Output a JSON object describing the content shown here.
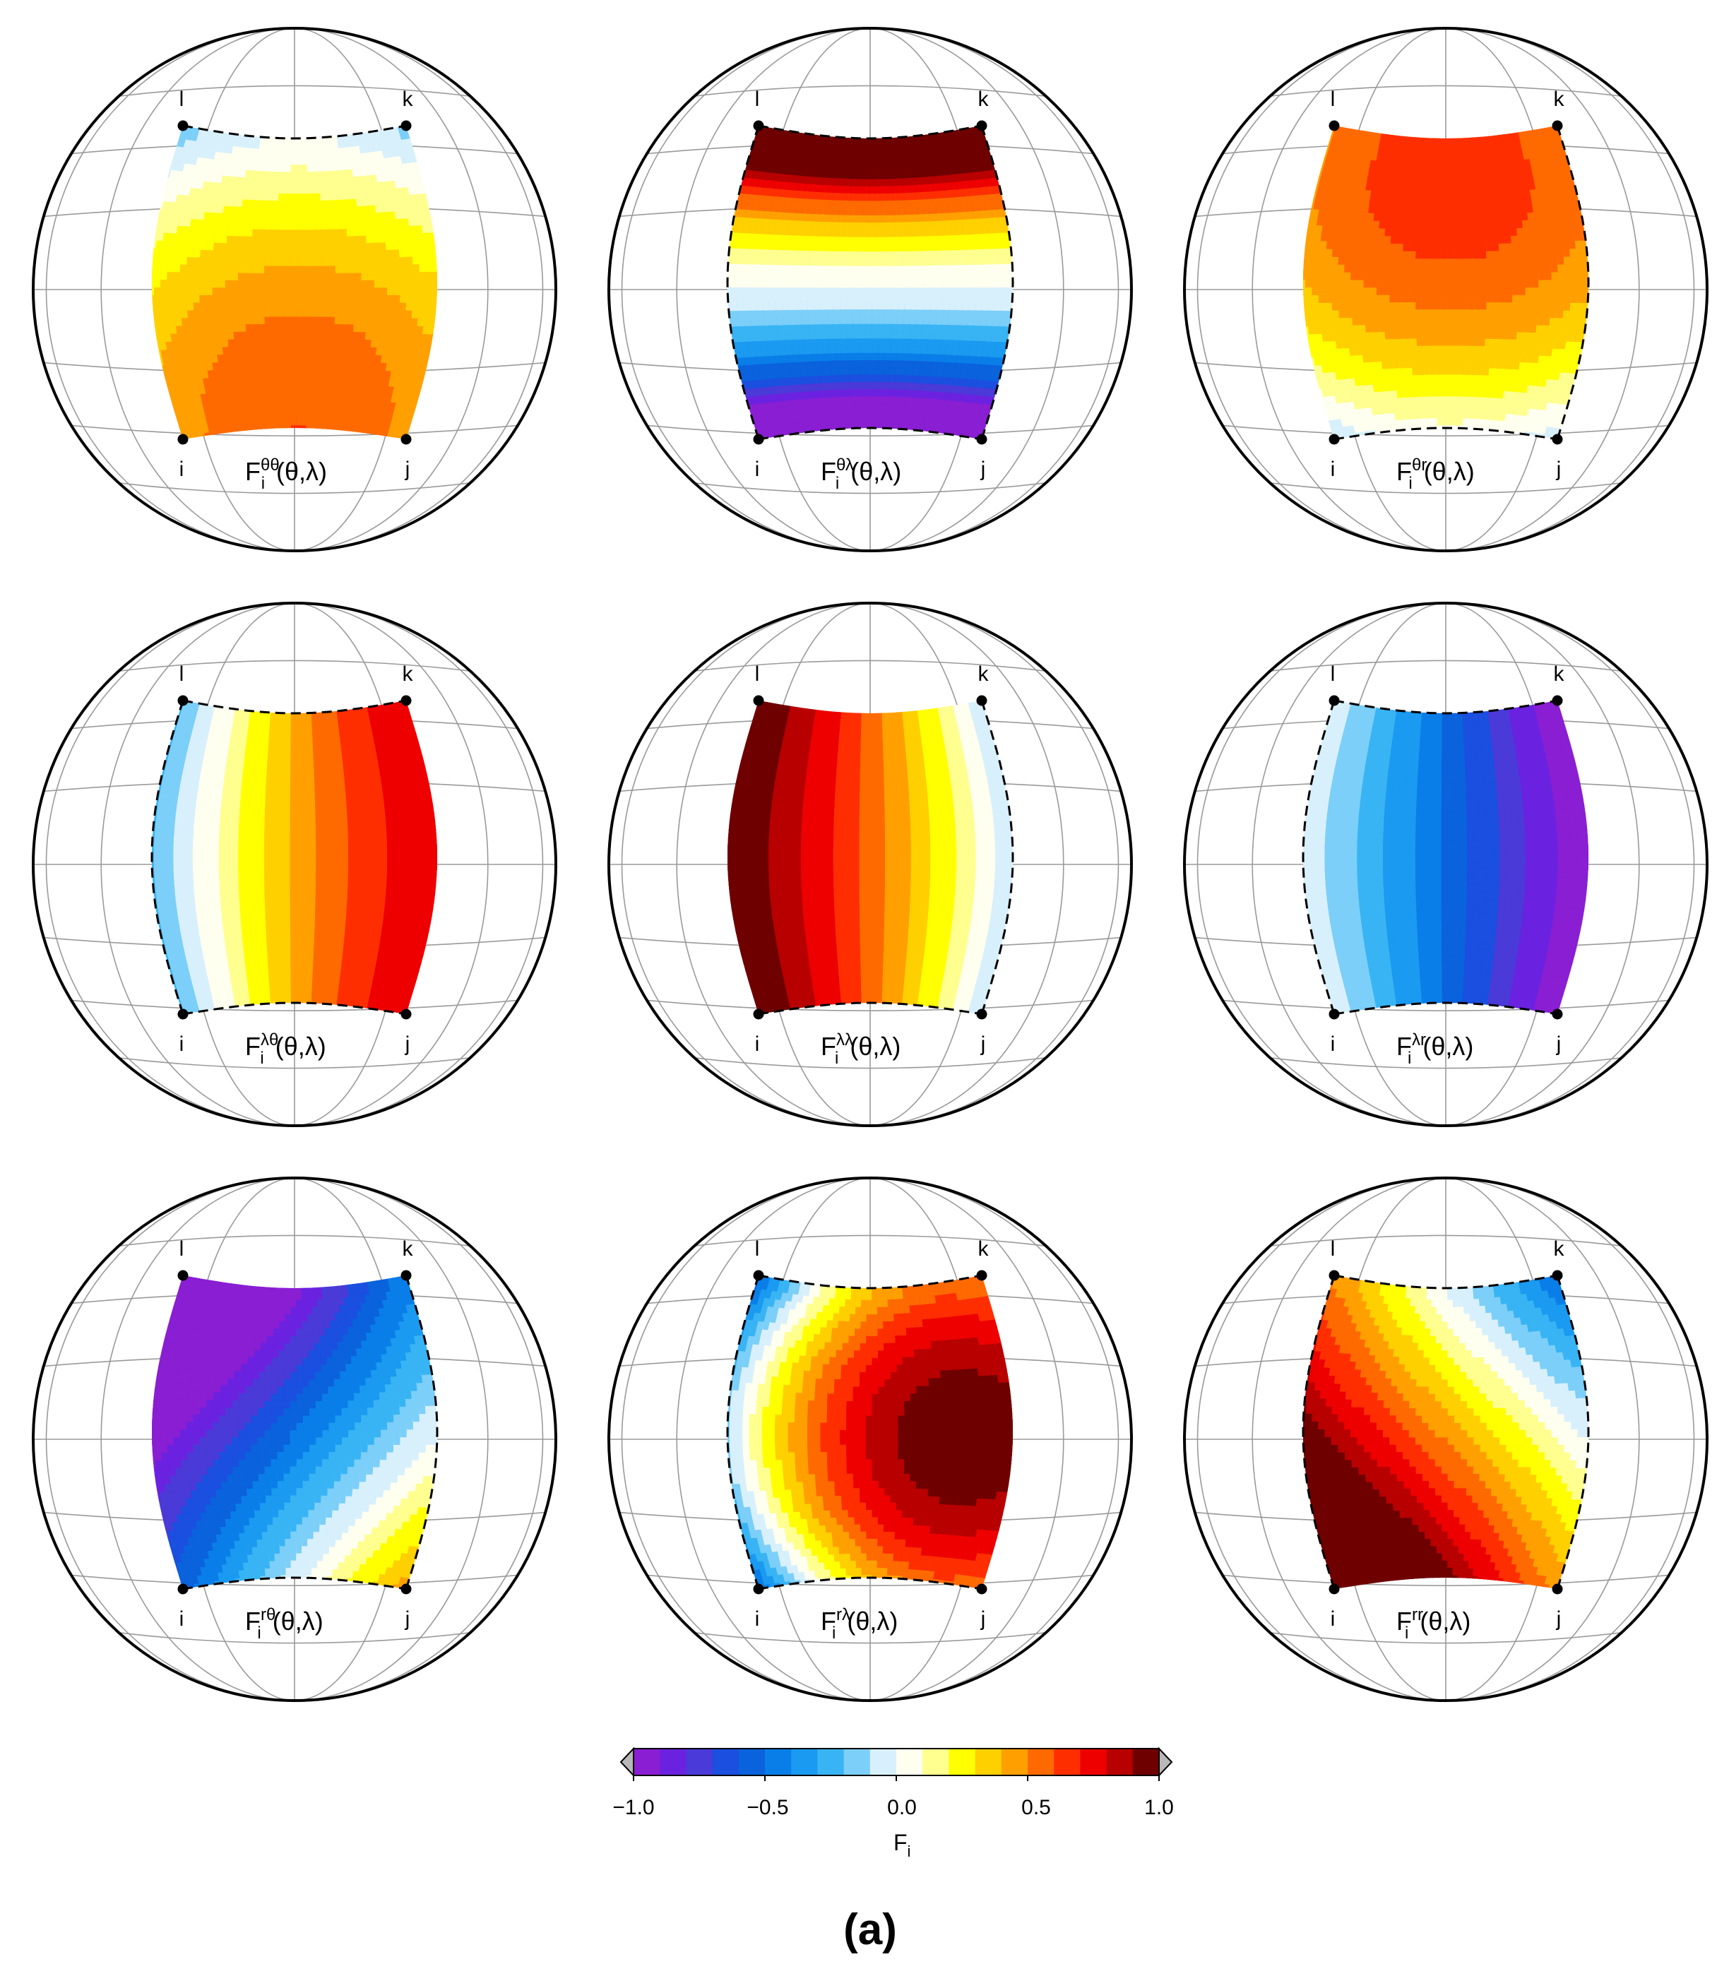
{
  "chart_data": {
    "type": "heatmap",
    "description_label": "(a)",
    "colormap": {
      "range": [
        -1.0,
        1.0
      ],
      "levels": [
        -1.0,
        -0.9,
        -0.8,
        -0.7,
        -0.6,
        -0.5,
        -0.4,
        -0.3,
        -0.2,
        -0.1,
        0.0,
        0.1,
        0.2,
        0.3,
        0.4,
        0.5,
        0.6,
        0.7,
        0.8,
        0.9,
        1.0
      ],
      "colors": [
        "#8a1ed2",
        "#6b22e0",
        "#4a3ad8",
        "#1a4fe0",
        "#0a62dc",
        "#0a7ee8",
        "#1a9af0",
        "#38b4f4",
        "#7ccff8",
        "#d8f0fc",
        "#fffff0",
        "#ffff90",
        "#ffff00",
        "#ffd000",
        "#ffa000",
        "#ff6a00",
        "#ff2e00",
        "#ee0000",
        "#b80000",
        "#6e0000"
      ],
      "extend": "both",
      "ticks": [
        -1.0,
        -0.5,
        0.0,
        0.5,
        1.0
      ],
      "tick_labels": [
        "−1.0",
        "−0.5",
        "0.0",
        "0.5",
        "1.0"
      ],
      "label": "F",
      "label_sub": "i"
    },
    "corner_labels": {
      "top_left": "l",
      "top_right": "k",
      "bottom_left": "i",
      "bottom_right": "j"
    },
    "panels": [
      {
        "id": "theta-theta",
        "sup": "θθ",
        "title_base": "F",
        "title_sub": "i",
        "title_args": "(θ,λ)",
        "dashed_edges": [
          "top"
        ],
        "field": {
          "c": 0.45,
          "a": 0.02,
          "b": -0.3,
          "d": -0.15,
          "e": 0.0,
          "f": -0.15,
          "g": 0.0
        }
      },
      {
        "id": "theta-lambda",
        "sup": "θλ",
        "title_base": "F",
        "title_sub": "i",
        "title_args": "(θ,λ)",
        "dashed_edges": [
          "top",
          "left",
          "right",
          "bottom"
        ],
        "field": {
          "c": 0.0,
          "a": 0.0,
          "b": 0.75,
          "d": 0.0,
          "e": 0.0,
          "f": 0.0,
          "g": 0.75
        }
      },
      {
        "id": "theta-r",
        "sup": "θr",
        "title_base": "F",
        "title_sub": "i",
        "title_args": "(θ,λ)",
        "dashed_edges": [
          "right",
          "bottom"
        ],
        "field": {
          "c": 0.55,
          "a": 0.02,
          "b": 0.3,
          "d": -0.15,
          "e": 0.0,
          "f": -0.2,
          "g": 0.0
        }
      },
      {
        "id": "lambda-theta",
        "sup": "λθ",
        "title_base": "F",
        "title_sub": "i",
        "title_args": "(θ,λ)",
        "dashed_edges": [
          "left",
          "top",
          "bottom"
        ],
        "field": {
          "c": 0.4,
          "a": 0.52,
          "b": 0.0,
          "d": -0.13,
          "e": 0.0,
          "f": 0.0,
          "g": 0.0
        }
      },
      {
        "id": "lambda-lambda",
        "sup": "λλ",
        "title_base": "F",
        "title_sub": "i",
        "title_args": "(θ,λ)",
        "dashed_edges": [
          "right",
          "bottom"
        ],
        "field": {
          "c": 0.58,
          "a": -0.55,
          "b": 0.0,
          "d": -0.1,
          "e": 0.0,
          "f": 0.0,
          "g": 0.0
        }
      },
      {
        "id": "lambda-r",
        "sup": "λr",
        "title_base": "F",
        "title_sub": "i",
        "title_args": "(θ,λ)",
        "dashed_edges": [
          "left",
          "top",
          "bottom"
        ],
        "field": {
          "c": -0.5,
          "a": -0.5,
          "b": 0.0,
          "d": 0.0,
          "e": 0.0,
          "f": 0.0,
          "g": 0.0
        }
      },
      {
        "id": "r-theta",
        "sup": "rθ",
        "title_base": "F",
        "title_sub": "i",
        "title_args": "(θ,λ)",
        "dashed_edges": [
          "right",
          "bottom"
        ],
        "field": {
          "c": -0.5,
          "a": 0.5,
          "b": -0.45,
          "d": 0.0,
          "e": 0.0,
          "f": 0.0,
          "g": 0.0
        }
      },
      {
        "id": "r-lambda",
        "sup": "rλ",
        "title_base": "F",
        "title_sub": "i",
        "title_args": "(θ,λ)",
        "dashed_edges": [
          "top",
          "left",
          "bottom"
        ],
        "field": {
          "c": 0.8,
          "a": 0.55,
          "b": 0.0,
          "d": -0.4,
          "e": 0.0,
          "f": -0.45,
          "g": 0.0
        }
      },
      {
        "id": "r-r",
        "sup": "rr",
        "title_base": "F",
        "title_sub": "i",
        "title_args": "(θ,λ)",
        "dashed_edges": [
          "top",
          "left",
          "right"
        ],
        "field": {
          "c": 0.5,
          "a": -0.5,
          "b": -0.48,
          "d": 0.0,
          "e": 0.0,
          "f": 0.0,
          "g": 0.0
        }
      }
    ]
  }
}
